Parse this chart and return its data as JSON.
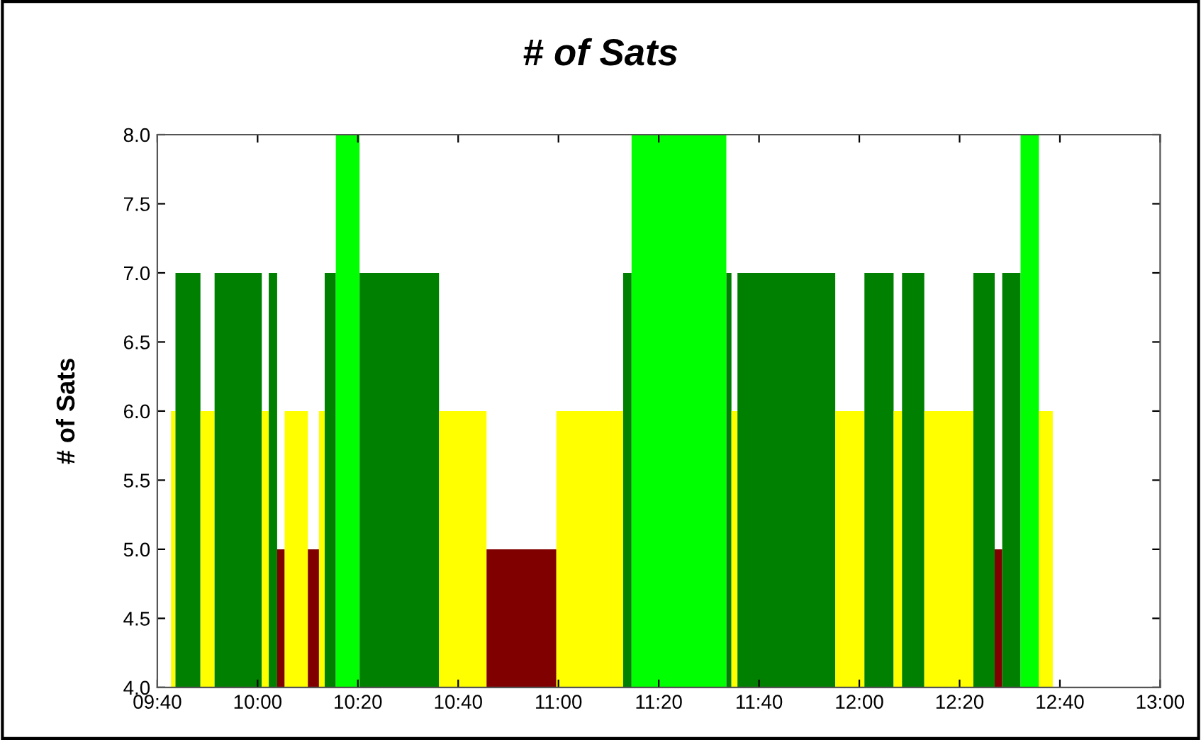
{
  "chart_data": {
    "type": "area",
    "title": "# of Sats",
    "ylabel": "# of Sats",
    "xlim": [
      9.6667,
      13.0
    ],
    "ylim": [
      4.0,
      8.0
    ],
    "xticks": [
      {
        "value": 9.6667,
        "label": "09:40"
      },
      {
        "value": 10.0,
        "label": "10:00"
      },
      {
        "value": 10.3333,
        "label": "10:20"
      },
      {
        "value": 10.6667,
        "label": "10:40"
      },
      {
        "value": 11.0,
        "label": "11:00"
      },
      {
        "value": 11.3333,
        "label": "11:20"
      },
      {
        "value": 11.6667,
        "label": "11:40"
      },
      {
        "value": 12.0,
        "label": "12:00"
      },
      {
        "value": 12.3333,
        "label": "12:20"
      },
      {
        "value": 12.6667,
        "label": "12:40"
      },
      {
        "value": 13.0,
        "label": "13:00"
      }
    ],
    "yticks": [
      {
        "value": 4.0,
        "label": "4.0"
      },
      {
        "value": 4.5,
        "label": "4.5"
      },
      {
        "value": 5.0,
        "label": "5.0"
      },
      {
        "value": 5.5,
        "label": "5.5"
      },
      {
        "value": 6.0,
        "label": "6.0"
      },
      {
        "value": 6.5,
        "label": "6.5"
      },
      {
        "value": 7.0,
        "label": "7.0"
      },
      {
        "value": 7.5,
        "label": "7.5"
      },
      {
        "value": 8.0,
        "label": "8.0"
      }
    ],
    "grid": false,
    "series": [
      {
        "color": "#ffff00",
        "x": [
          9.712,
          9.727
        ],
        "values": [
          6,
          6
        ]
      },
      {
        "color": "#008000",
        "x": [
          9.727,
          9.81
        ],
        "values": [
          7,
          7
        ]
      },
      {
        "color": "#ffff00",
        "x": [
          9.81,
          9.857
        ],
        "values": [
          6,
          6
        ]
      },
      {
        "color": "#008000",
        "x": [
          9.857,
          10.014
        ],
        "values": [
          7,
          7
        ]
      },
      {
        "color": "#ffff00",
        "x": [
          10.014,
          10.037
        ],
        "values": [
          6,
          6
        ]
      },
      {
        "color": "#008000",
        "x": [
          10.037,
          10.065
        ],
        "values": [
          7,
          7
        ]
      },
      {
        "color": "#800000",
        "x": [
          10.065,
          10.09
        ],
        "values": [
          5,
          5
        ]
      },
      {
        "color": "#ffff00",
        "x": [
          10.09,
          10.167
        ],
        "values": [
          6,
          6
        ]
      },
      {
        "color": "#800000",
        "x": [
          10.167,
          10.204
        ],
        "values": [
          5,
          5
        ]
      },
      {
        "color": "#ffff00",
        "x": [
          10.204,
          10.223
        ],
        "values": [
          6,
          6
        ]
      },
      {
        "color": "#008000",
        "x": [
          10.223,
          10.26
        ],
        "values": [
          7,
          7
        ]
      },
      {
        "color": "#00ff00",
        "x": [
          10.26,
          10.339
        ],
        "values": [
          8,
          8
        ]
      },
      {
        "color": "#008000",
        "x": [
          10.339,
          10.603
        ],
        "values": [
          7,
          7
        ]
      },
      {
        "color": "#ffff00",
        "x": [
          10.603,
          10.761
        ],
        "values": [
          6,
          6
        ]
      },
      {
        "color": "#800000",
        "x": [
          10.761,
          10.993
        ],
        "values": [
          5,
          5
        ]
      },
      {
        "color": "#ffff00",
        "x": [
          10.993,
          11.215
        ],
        "values": [
          6,
          6
        ]
      },
      {
        "color": "#008000",
        "x": [
          11.215,
          11.243
        ],
        "values": [
          7,
          7
        ]
      },
      {
        "color": "#00ff00",
        "x": [
          11.243,
          11.558
        ],
        "values": [
          8,
          8
        ]
      },
      {
        "color": "#008000",
        "x": [
          11.558,
          11.575
        ],
        "values": [
          7,
          7
        ]
      },
      {
        "color": "#ffff00",
        "x": [
          11.575,
          11.595
        ],
        "values": [
          6,
          6
        ]
      },
      {
        "color": "#008000",
        "x": [
          11.595,
          11.92
        ],
        "values": [
          7,
          7
        ]
      },
      {
        "color": "#ffff00",
        "x": [
          11.92,
          12.017
        ],
        "values": [
          6,
          6
        ]
      },
      {
        "color": "#008000",
        "x": [
          12.017,
          12.114
        ],
        "values": [
          7,
          7
        ]
      },
      {
        "color": "#ffff00",
        "x": [
          12.114,
          12.142
        ],
        "values": [
          6,
          6
        ]
      },
      {
        "color": "#008000",
        "x": [
          12.142,
          12.216
        ],
        "values": [
          7,
          7
        ]
      },
      {
        "color": "#ffff00",
        "x": [
          12.216,
          12.379
        ],
        "values": [
          6,
          6
        ]
      },
      {
        "color": "#008000",
        "x": [
          12.379,
          12.45
        ],
        "values": [
          7,
          7
        ]
      },
      {
        "color": "#800000",
        "x": [
          12.45,
          12.475
        ],
        "values": [
          5,
          5
        ]
      },
      {
        "color": "#008000",
        "x": [
          12.475,
          12.536
        ],
        "values": [
          7,
          7
        ]
      },
      {
        "color": "#00ff00",
        "x": [
          12.536,
          12.597
        ],
        "values": [
          8,
          8
        ]
      },
      {
        "color": "#ffff00",
        "x": [
          12.597,
          12.643
        ],
        "values": [
          6,
          6
        ]
      }
    ]
  }
}
